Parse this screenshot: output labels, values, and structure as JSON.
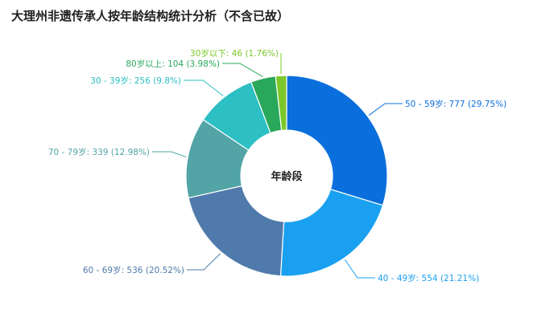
{
  "title": "大理州非遗传承人按年龄结构统计分析（不含已故）",
  "chart_data": {
    "type": "pie",
    "variant": "donut",
    "center_label": "年龄段",
    "slices": [
      {
        "label": "50 - 59岁",
        "value": 777,
        "percent": "29.75%",
        "color": "#0a6fdc",
        "text": "50 - 59岁: 777 (29.75%)"
      },
      {
        "label": "40 - 49岁",
        "value": 554,
        "percent": "21.21%",
        "color": "#1aa0f0",
        "text": "40 - 49岁: 554 (21.21%)"
      },
      {
        "label": "60 - 69岁",
        "value": 536,
        "percent": "20.52%",
        "color": "#4f7aab",
        "text": "60 - 69岁: 536 (20.52%)"
      },
      {
        "label": "70 - 79岁",
        "value": 339,
        "percent": "12.98%",
        "color": "#52a4a6",
        "text": "70 - 79岁: 339 (12.98%)"
      },
      {
        "label": "30 - 39岁",
        "value": 256,
        "percent": "9.8%",
        "color": "#2cbfc4",
        "text": "30 - 39岁: 256 (9.8%)"
      },
      {
        "label": "80岁以上",
        "value": 104,
        "percent": "3.98%",
        "color": "#29a85a",
        "text": "80岁以上: 104 (3.98%)"
      },
      {
        "label": "30岁以下",
        "value": 46,
        "percent": "1.76%",
        "color": "#7cc82a",
        "text": "30岁以下: 46 (1.76%)"
      }
    ]
  }
}
